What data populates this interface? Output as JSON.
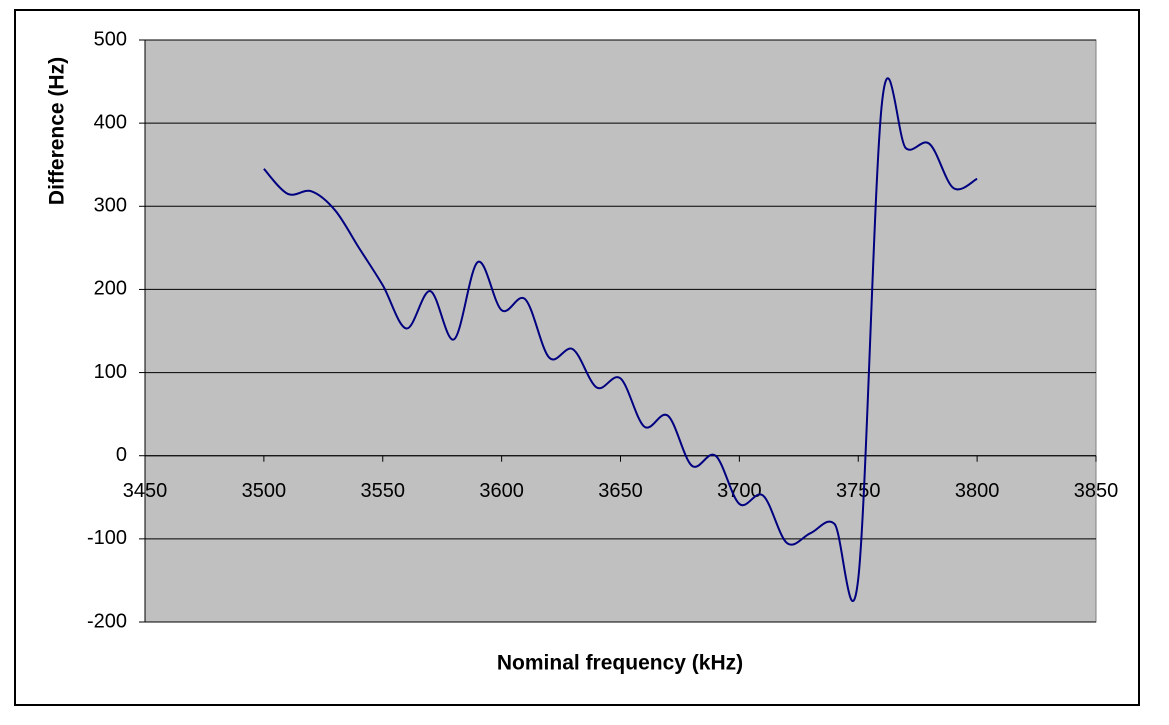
{
  "chart_data": {
    "type": "line",
    "smooth": true,
    "x_label": "Nominal frequency (kHz)",
    "y_label": "Difference (Hz)",
    "x": [
      3500,
      3510,
      3520,
      3530,
      3540,
      3550,
      3560,
      3570,
      3580,
      3590,
      3600,
      3610,
      3620,
      3630,
      3640,
      3650,
      3660,
      3670,
      3680,
      3690,
      3700,
      3710,
      3720,
      3730,
      3740,
      3750,
      3760,
      3770,
      3780,
      3790,
      3800
    ],
    "series": [
      {
        "color": "#000080",
        "values": [
          345,
          315,
          318,
          295,
          250,
          205,
          153,
          198,
          140,
          233,
          175,
          188,
          118,
          128,
          82,
          93,
          35,
          48,
          -12,
          0,
          -58,
          -48,
          -105,
          -93,
          -82,
          -148,
          425,
          370,
          375,
          322,
          333
        ]
      }
    ],
    "xlim": [
      3450,
      3850
    ],
    "xticks": [
      3450,
      3500,
      3550,
      3600,
      3650,
      3700,
      3750,
      3800,
      3850
    ],
    "ylim": [
      -200,
      500
    ],
    "yticks": [
      -200,
      -100,
      0,
      100,
      200,
      300,
      400,
      500
    ],
    "grid": true,
    "plot_background": "#c0c0c0"
  }
}
